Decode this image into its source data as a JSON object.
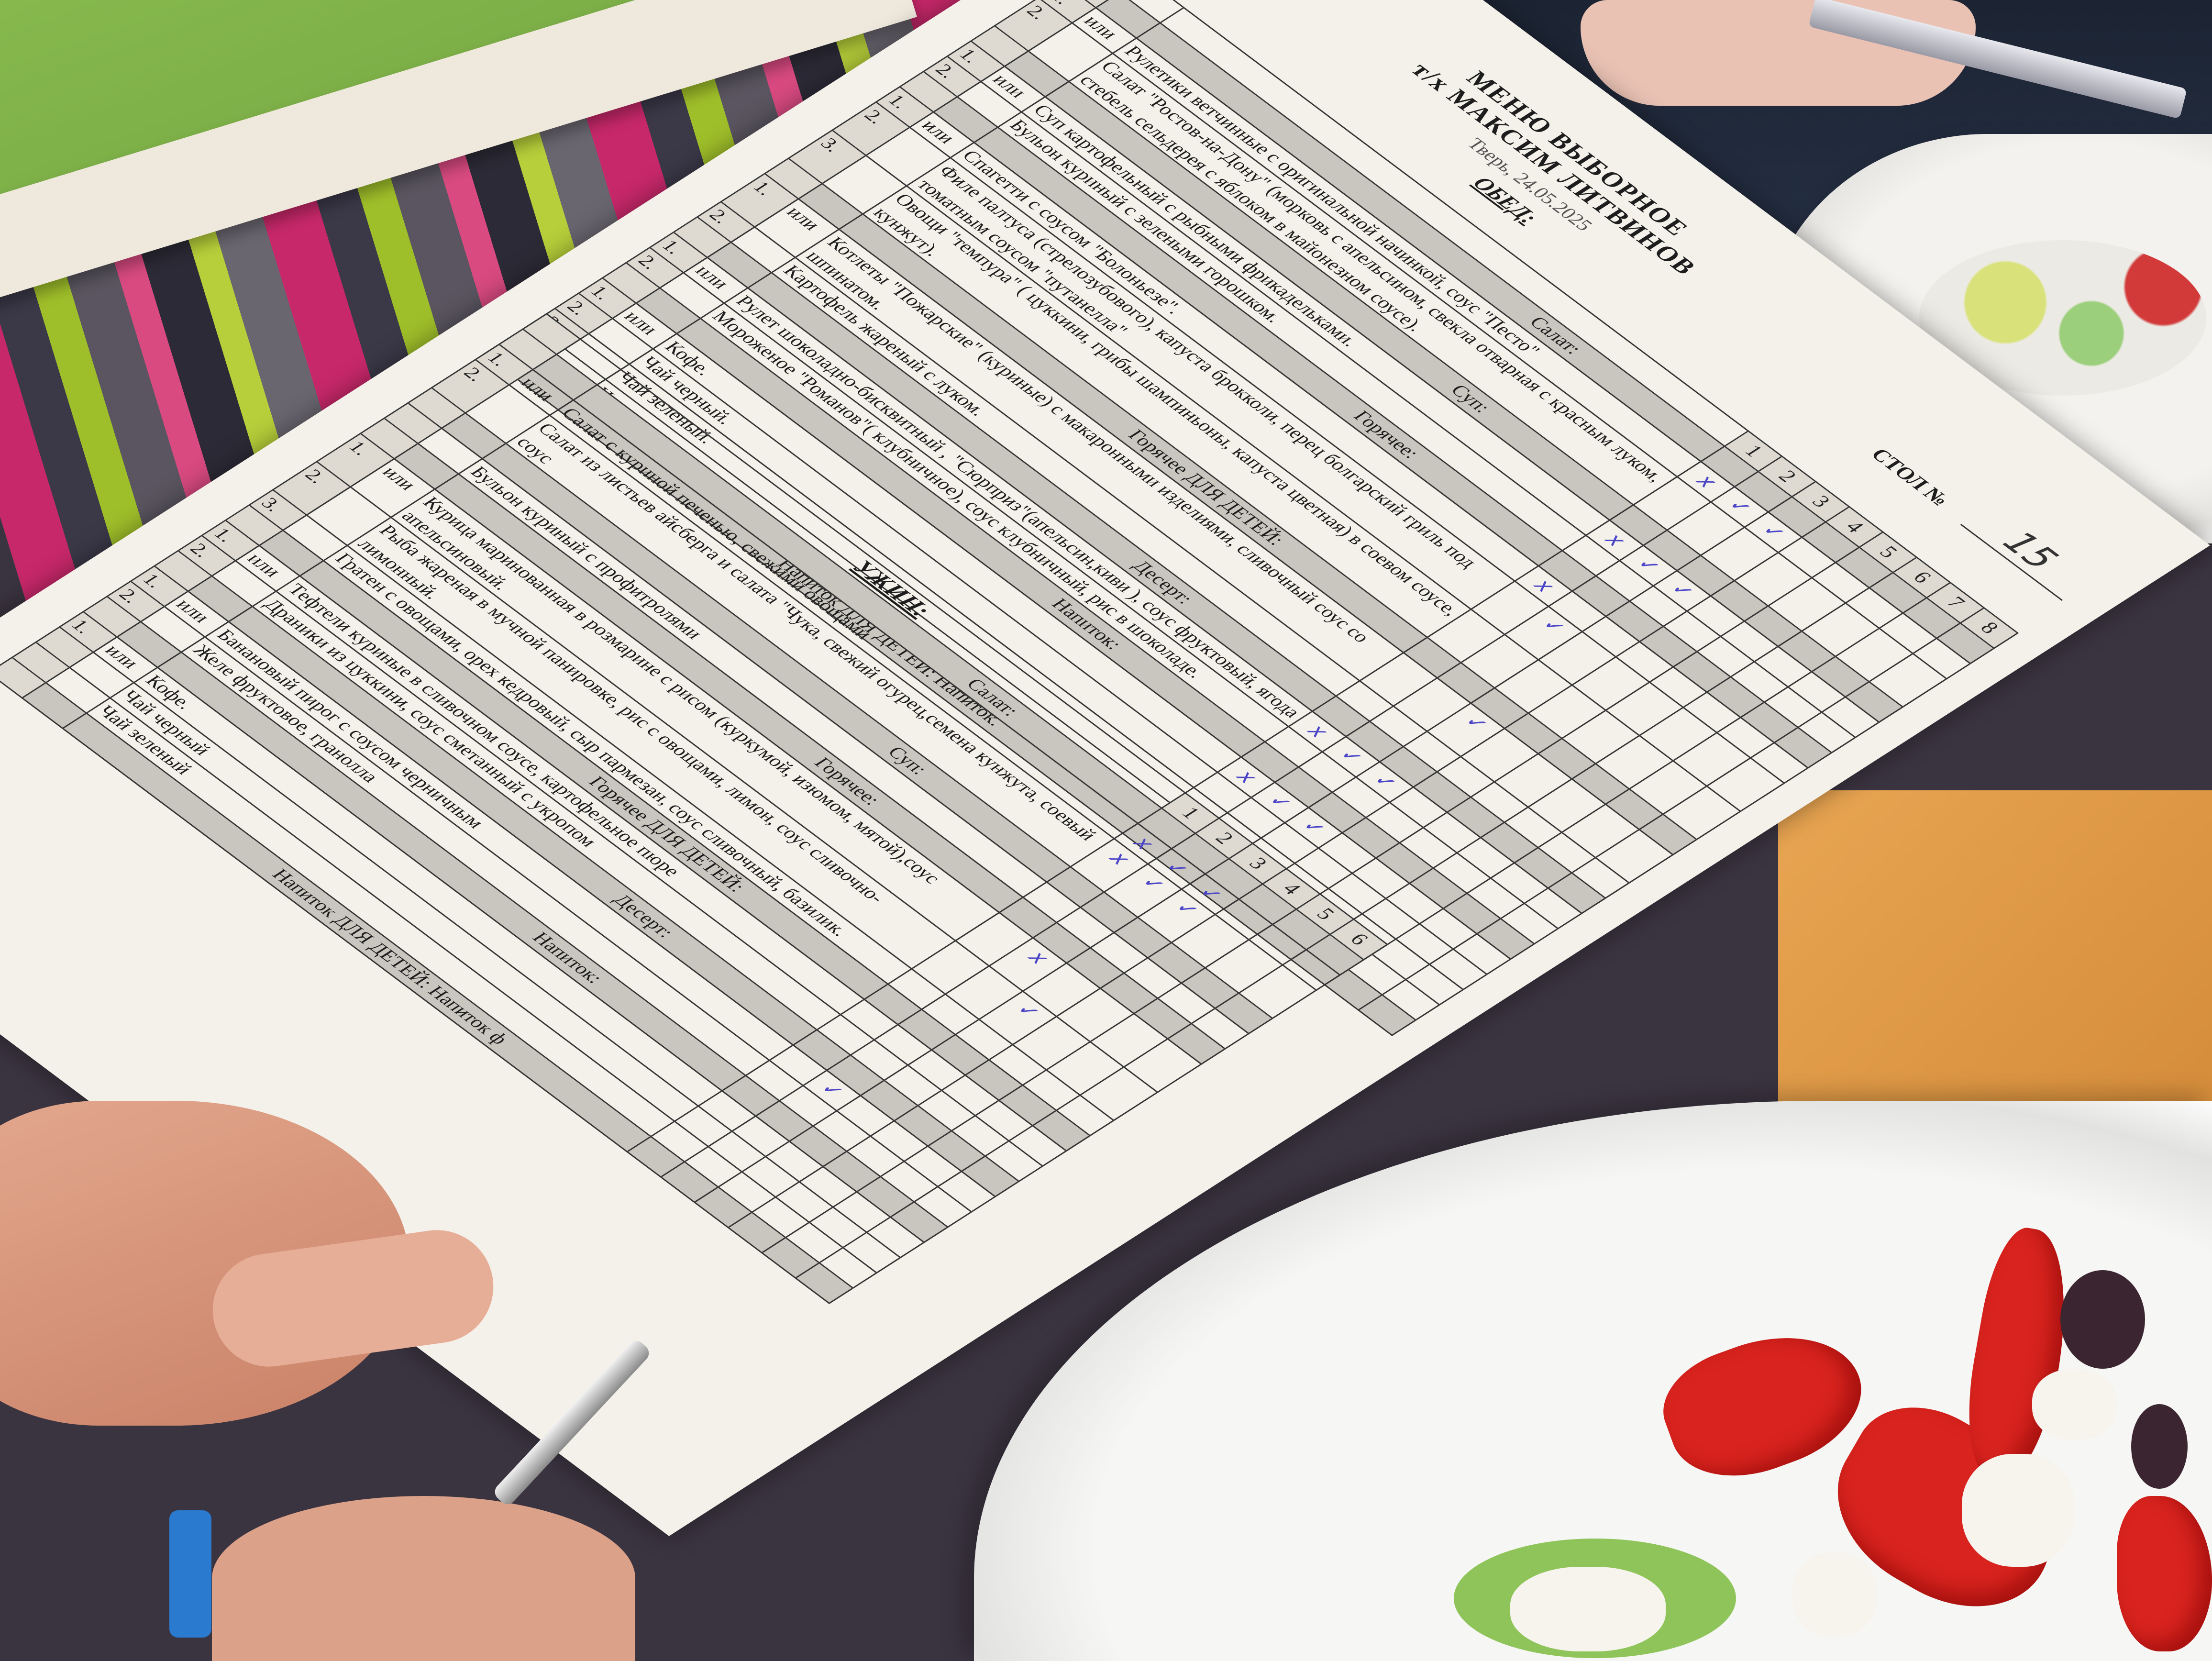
{
  "header": {
    "title": "МЕНЮ ВЫБОРНОЕ",
    "ship": "т/х МАКСИМ ЛИТВИНОВ",
    "place_date": "Тверь, 24.05.2025",
    "meal": "ОБЕД:",
    "table_label": "СТОЛ №",
    "table_number": "15"
  },
  "colors": {
    "paper": "#f4f1ea",
    "header_band": "#c9c6bf",
    "ink_marks": "#4b45c8"
  },
  "lunch": {
    "columns": [
      "1",
      "2",
      "3",
      "4",
      "5",
      "6",
      "7",
      "8"
    ],
    "sections": [
      {
        "title": "Салат:",
        "items": [
          {
            "num": "1.",
            "or": "или",
            "text": "Рулетики ветчинные с оригинальной начинкой, соус \"Песто\"",
            "marks": [
              "x",
              "✓",
              "✓"
            ]
          },
          {
            "num": "2.",
            "text": "Салат \"Ростов-на-Дону\" (морковь с апельсином, свекла отварная с красным луком, стебель сельдерея с яблоком в майонезном соусе).",
            "marks": []
          }
        ]
      },
      {
        "title": "Суп:",
        "items": [
          {
            "num": "1.",
            "or": "или",
            "text": "Суп картофельный с рыбными фрикадельками.",
            "marks": [
              "x",
              "✓",
              "✓"
            ]
          },
          {
            "num": "2.",
            "text": "Бульон куриный с зелеными горошком.",
            "marks": []
          }
        ]
      },
      {
        "title": "Горячее:",
        "items": [
          {
            "num": "1.",
            "or": "или",
            "text": "Спагетти с соусом \"Болоньезе\".",
            "marks": [
              "x"
            ]
          },
          {
            "num": "2.",
            "text": "Филе палтуса (стрелозубового), капуста брокколи, перец болгарский гриль под томатным соусом \"путанелла\"",
            "marks": [
              "",
              "✓"
            ]
          },
          {
            "num": "3.",
            "text": "Овощи \"темпура\" ( цуккини, грибы шампиньоны, капуста цветная) в соевом соусе, кунжут).",
            "marks": []
          }
        ]
      },
      {
        "title": "Горячее ДЛЯ ДЕТЕЙ:",
        "items": [
          {
            "num": "1.",
            "or": "или",
            "text": "Котлеты \"Пожарские\" (куриные) с макаронными изделиями, сливочный соус со шпинатом.",
            "marks": [
              "",
              "",
              "✓"
            ]
          },
          {
            "num": "2.",
            "text": "Картофель жареный с луком.",
            "marks": []
          }
        ]
      },
      {
        "title": "Десерт:",
        "items": [
          {
            "num": "1.",
            "or": "или",
            "text": "Рулет шоколадно-бисквитный , \"Сюрприз\"(апельсин,киви ), соус фруктовый, ягода",
            "marks": [
              "x",
              "✓",
              "✓"
            ]
          },
          {
            "num": "2.",
            "text": "Мороженое \"Романов\"( клубничное), соус клубничный, рис в шоколаде.",
            "marks": []
          }
        ]
      },
      {
        "title": "Напиток:",
        "items": [
          {
            "num": "1.",
            "or": "или",
            "text": "Кофе.",
            "marks": [
              "x",
              "✓",
              "✓"
            ]
          },
          {
            "num": "2.",
            "text": "Чай черный.",
            "marks": []
          },
          {
            "num": "3",
            "text": "Чай зеленый.",
            "marks": []
          },
          {
            "num": "4.",
            "text": "Напиток",
            "marks": []
          }
        ]
      },
      {
        "title": "Напиток ДЛЯ ДЕТЕЙ: Напиток.",
        "items": []
      }
    ]
  },
  "dinner": {
    "title": "УЖИН:",
    "columns": [
      "1",
      "2",
      "3",
      "4",
      "5",
      "6"
    ],
    "sections": [
      {
        "title": "Салат:",
        "items": [
          {
            "num": "1.",
            "or": "или",
            "text": "Салат с куриной печенью, свежими овощами",
            "marks": [
              "x",
              "✓",
              "✓"
            ]
          },
          {
            "num": "2.",
            "text": "Салат из листьев айсберга и салата \"Чука, свежий огурец,семена кунжута, соевый соус",
            "marks": [
              "x",
              "✓",
              "✓"
            ]
          }
        ]
      },
      {
        "title": "Суп:",
        "items": [
          {
            "num": "",
            "text": "Бульон куриный с профитролями",
            "marks": []
          }
        ]
      },
      {
        "title": "Горячее:",
        "items": [
          {
            "num": "1.",
            "or": "или",
            "text": "Курица маринованная в розмарине с рисом (куркумой, изюмом, мятой),соус апельсиновый.",
            "marks": [
              "",
              "x"
            ]
          },
          {
            "num": "2.",
            "text": "Рыба жареная в мучной панировке, рис с овощами, лимон, соус сливочно-лимонный.",
            "marks": [
              "",
              "",
              "✓"
            ]
          },
          {
            "num": "3.",
            "text": "Гратен с овощами, орех кедровый, сыр пармезан, соус сливочный, базилик.",
            "marks": []
          }
        ]
      },
      {
        "title": "Горячее ДЛЯ ДЕТЕЙ:",
        "items": [
          {
            "num": "1.",
            "or": "или",
            "text": "Тефтели куриные в сливочном соусе, картофельное пюре",
            "marks": []
          },
          {
            "num": "2.",
            "text": "Драники из цуккини, соус сметанный с укропом",
            "marks": []
          }
        ]
      },
      {
        "title": "Десерт:",
        "items": [
          {
            "num": "1.",
            "or": "или",
            "text": "Банановый пирог с соусом черничным",
            "marks": [
              "",
              "✓"
            ]
          },
          {
            "num": "2.",
            "text": "Желе фруктовое, гранолла",
            "marks": []
          }
        ]
      },
      {
        "title": "Напиток:",
        "items": [
          {
            "num": "1.",
            "or": "или",
            "text": "Кофе.",
            "marks": []
          },
          {
            "num": "",
            "text": "Чай черный",
            "marks": []
          },
          {
            "num": "",
            "text": "Чай зеленый",
            "marks": []
          }
        ]
      },
      {
        "title": "Напиток ДЛЯ ДЕТЕЙ: Напиток ф",
        "items": []
      }
    ]
  }
}
